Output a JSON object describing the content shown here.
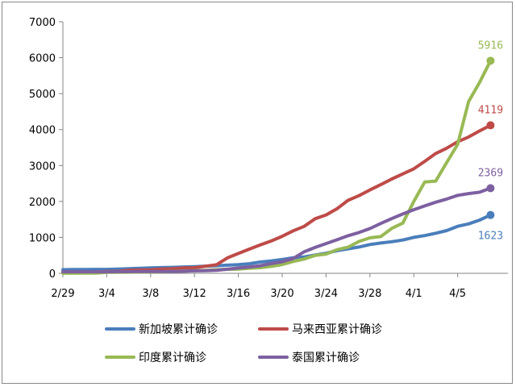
{
  "chart_data": {
    "type": "line",
    "x": [
      "2/29",
      "3/1",
      "3/2",
      "3/3",
      "3/4",
      "3/5",
      "3/6",
      "3/7",
      "3/8",
      "3/9",
      "3/10",
      "3/11",
      "3/12",
      "3/13",
      "3/14",
      "3/15",
      "3/16",
      "3/17",
      "3/18",
      "3/19",
      "3/20",
      "3/21",
      "3/22",
      "3/23",
      "3/24",
      "3/25",
      "3/26",
      "3/27",
      "3/28",
      "3/29",
      "3/30",
      "3/31",
      "4/1",
      "4/2",
      "4/3",
      "4/4",
      "4/5",
      "4/6",
      "4/7",
      "4/8"
    ],
    "x_tick_labels": [
      "2/29",
      "3/4",
      "3/8",
      "3/12",
      "3/16",
      "3/20",
      "3/24",
      "3/28",
      "4/1",
      "4/5"
    ],
    "ylim": [
      0,
      7000
    ],
    "y_tick_labels": [
      "0",
      "1000",
      "2000",
      "3000",
      "4000",
      "5000",
      "6000",
      "7000"
    ],
    "grid": false,
    "legend_position": "bottom",
    "series": [
      {
        "name": "新加坡累计确诊",
        "color": "#4a7ebb",
        "end_label": "1623",
        "values": [
          102,
          106,
          108,
          110,
          110,
          117,
          130,
          138,
          150,
          160,
          166,
          178,
          187,
          200,
          212,
          226,
          243,
          266,
          313,
          345,
          385,
          432,
          455,
          509,
          558,
          631,
          683,
          732,
          802,
          844,
          879,
          926,
          1000,
          1049,
          1114,
          1189,
          1309,
          1375,
          1481,
          1623
        ]
      },
      {
        "name": "马来西亚累计确诊",
        "color": "#be4b48",
        "end_label": "4119",
        "values": [
          25,
          25,
          29,
          36,
          50,
          55,
          83,
          93,
          99,
          117,
          129,
          149,
          158,
          197,
          238,
          428,
          553,
          673,
          790,
          900,
          1030,
          1183,
          1306,
          1518,
          1624,
          1796,
          2031,
          2161,
          2320,
          2470,
          2626,
          2766,
          2908,
          3116,
          3333,
          3483,
          3662,
          3793,
          3963,
          4119
        ]
      },
      {
        "name": "印度累计确诊",
        "color": "#98b954",
        "end_label": "5916",
        "values": [
          3,
          3,
          5,
          5,
          28,
          30,
          31,
          34,
          39,
          43,
          56,
          62,
          73,
          82,
          102,
          113,
          119,
          142,
          156,
          194,
          244,
          330,
          396,
          499,
          536,
          657,
          727,
          887,
          987,
          1024,
          1251,
          1397,
          1998,
          2543,
          2567,
          3082,
          3588,
          4778,
          5311,
          5916
        ]
      },
      {
        "name": "泰国累计确诊",
        "color": "#7d60a0",
        "end_label": "2369",
        "values": [
          42,
          42,
          42,
          43,
          43,
          47,
          48,
          50,
          50,
          50,
          53,
          59,
          70,
          75,
          82,
          114,
          147,
          177,
          212,
          272,
          322,
          411,
          599,
          721,
          827,
          934,
          1045,
          1136,
          1245,
          1388,
          1524,
          1651,
          1771,
          1875,
          1978,
          2067,
          2169,
          2220,
          2258,
          2369
        ]
      }
    ]
  }
}
